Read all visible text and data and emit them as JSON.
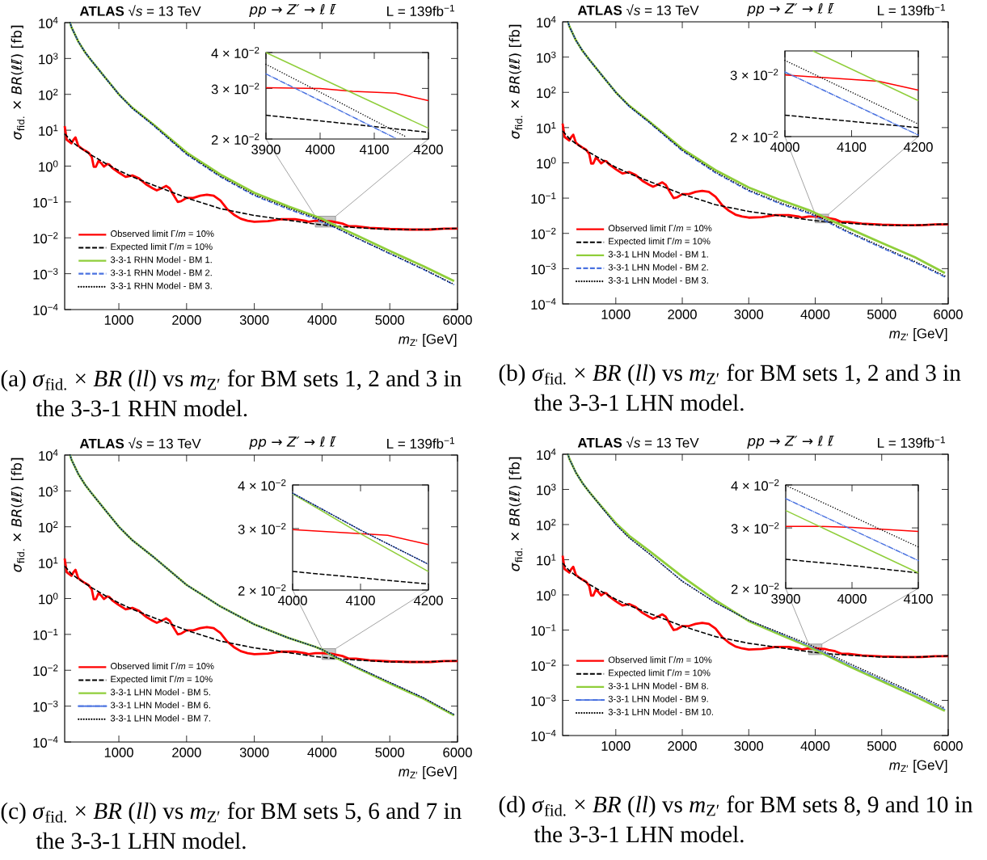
{
  "chart_data": [
    {
      "type": "line",
      "log": "y",
      "legend": "bottom left",
      "xlabel": "*m*$_{Z′}$ [GeV]",
      "ylabel": "*σ*$_{fid.}$ × *BR*(*ℓℓ̄*)  [fb]",
      "xlim": [
        200,
        6000
      ],
      "ylim": [
        0.0001,
        10000
      ],
      "xticks": [
        1000,
        2000,
        3000,
        4000,
        5000,
        6000
      ],
      "yticks": [
        {
          "value": 0.0001,
          "label": "10$^{−4}$"
        },
        {
          "value": 0.001,
          "label": "10$^{−3}$"
        },
        {
          "value": 0.01,
          "label": "10$^{−2}$"
        },
        {
          "value": 0.1,
          "label": "10$^{−1}$"
        },
        {
          "value": 1,
          "label": "10$^{0}$"
        },
        {
          "value": 10,
          "label": "10$^{1}$"
        },
        {
          "value": 100,
          "label": "10$^{2}$"
        },
        {
          "value": 1000,
          "label": "10$^{3}$"
        },
        {
          "value": 10000,
          "label": "10$^{4}$"
        }
      ],
      "annotations": [
        "**ATLAS** √*s* = 13 TeV",
        "*pp* → *Z′* → *ℓ* *ℓ̄*",
        "L = 139fb$^{−1}$",
        "(a) *σ*$_{fid.}$ × *BR* (*ll*) vs *m*$_{Z′}$ for BM sets 1, 2 and 3 in the 3-3-1 RHN model."
      ],
      "series": [
        {
          "name": "Observed limit Γ/*m* = 10%",
          "color": "#ff0000",
          "line_style": "solid",
          "x": [
            200,
            230,
            260,
            300,
            330,
            360,
            400,
            450,
            500,
            550,
            600,
            630,
            660,
            700,
            740,
            780,
            830,
            860,
            900,
            1000,
            1100,
            1200,
            1300,
            1400,
            1500,
            1560,
            1630,
            1700,
            1750,
            1800,
            1870,
            1920,
            2000,
            2100,
            2200,
            2300,
            2400,
            2500,
            2600,
            2700,
            2800,
            2900,
            3000,
            3200,
            3400,
            3600,
            3750,
            3800,
            3900,
            4000,
            4140,
            4200,
            4300,
            4400,
            4500,
            4700,
            5000,
            5300,
            5600,
            5800,
            6000
          ],
          "values": [
            13,
            5.4,
            4.9,
            4.3,
            5.4,
            6.3,
            3.7,
            3.1,
            2.7,
            2.4,
            1.8,
            0.95,
            0.95,
            1.4,
            1.2,
            0.97,
            1.14,
            1.1,
            0.9,
            0.66,
            0.5,
            0.55,
            0.45,
            0.31,
            0.24,
            0.21,
            0.24,
            0.28,
            0.24,
            0.165,
            0.1,
            0.105,
            0.13,
            0.13,
            0.15,
            0.16,
            0.15,
            0.11,
            0.063,
            0.044,
            0.034,
            0.03,
            0.028,
            0.029,
            0.033,
            0.033,
            0.03,
            0.028,
            0.03,
            0.03,
            0.0289,
            0.0272,
            0.025,
            0.021,
            0.021,
            0.019,
            0.0177,
            0.017,
            0.017,
            0.018,
            0.018
          ]
        },
        {
          "name": "Expected limit Γ/*m* = 10%",
          "color": "#000000",
          "line_style": "dashed",
          "x": [
            200,
            300,
            400,
            600,
            800,
            1000,
            1200,
            1500,
            2000,
            2500,
            3000,
            3500,
            3900,
            4000,
            4200,
            4500,
            5000,
            5500,
            6000
          ],
          "values": [
            8,
            4.9,
            3.5,
            2,
            1.2,
            0.75,
            0.5,
            0.3,
            0.13,
            0.065,
            0.042,
            0.031,
            0.0242,
            0.023,
            0.0211,
            0.0193,
            0.017,
            0.017,
            0.0185
          ]
        },
        {
          "name": "3-3-1 RHN Model - BM 1.",
          "color": "#8fce3a",
          "line_style": "solid",
          "x": [
            280,
            300,
            400,
            500,
            600,
            800,
            1000,
            1200,
            1500,
            2000,
            2500,
            3000,
            3500,
            3900,
            4000,
            4200,
            4500,
            5000,
            5500,
            5950
          ],
          "values": [
            10000,
            7500,
            3000,
            1500,
            850,
            290,
            100,
            42,
            15,
            2.4,
            0.58,
            0.18,
            0.075,
            0.04,
            0.034,
            0.0218,
            0.012,
            0.0043,
            0.0016,
            0.00062
          ]
        },
        {
          "name": "3-3-1 RHN Model - BM 2.",
          "color": "#4a72e0",
          "line_style": "dashed",
          "x": [
            280,
            300,
            400,
            500,
            600,
            800,
            1000,
            1200,
            1500,
            2000,
            2500,
            3000,
            3500,
            3900,
            4000,
            4200,
            4500,
            5000,
            5500,
            5950
          ],
          "values": [
            10000,
            7500,
            3000,
            1500,
            850,
            290,
            100,
            40,
            14,
            2.1,
            0.5,
            0.15,
            0.063,
            0.0337,
            0.0272,
            0.019,
            0.01,
            0.0036,
            0.0013,
            0.00049
          ]
        },
        {
          "name": "3-3-1 RHN Model - BM 3.",
          "color": "#000000",
          "line_style": "dotted",
          "x": [
            280,
            300,
            400,
            500,
            600,
            800,
            1000,
            1200,
            1500,
            2000,
            2500,
            3000,
            3500,
            3900,
            4000,
            4200,
            4500,
            5000,
            5500,
            5950
          ],
          "values": [
            10000,
            7500,
            3000,
            1500,
            850,
            290,
            100,
            41,
            14.5,
            2.2,
            0.52,
            0.16,
            0.068,
            0.0364,
            0.0291,
            0.0195,
            0.0102,
            0.0037,
            0.00135,
            0.0005
          ]
        }
      ]
    },
    {
      "type": "line",
      "log": "y",
      "xlim": [
        3900,
        4200
      ],
      "ylim": [
        0.02,
        0.04
      ],
      "xticks": [
        3900,
        4000,
        4100,
        4200
      ],
      "yticks": [
        {
          "value": 0.02,
          "label": "2 × 10$^{−2}$"
        },
        {
          "value": 0.03,
          "label": "3 × 10$^{−2}$"
        },
        {
          "value": 0.04,
          "label": "4 × 10$^{−2}$"
        }
      ],
      "series": [
        {
          "color": "#ff0000",
          "line_style": "solid",
          "x": [
            3900,
            4000,
            4060,
            4140,
            4200
          ],
          "values": [
            0.0302,
            0.03,
            0.0293,
            0.0289,
            0.0272
          ]
        },
        {
          "color": "#000000",
          "line_style": "dashed",
          "x": [
            3900,
            4050,
            4200
          ],
          "values": [
            0.0242,
            0.0226,
            0.0211
          ]
        },
        {
          "color": "#8fce3a",
          "line_style": "solid",
          "x": [
            3900,
            4050,
            4200
          ],
          "values": [
            0.04,
            0.0295,
            0.0218
          ]
        },
        {
          "color": "#4a72e0",
          "line_style": "dashdot",
          "x": [
            3900,
            4000,
            4100,
            4140
          ],
          "values": [
            0.0337,
            0.0272,
            0.0219,
            0.0201
          ]
        },
        {
          "color": "#000000",
          "line_style": "dotted",
          "x": [
            3900,
            4000,
            4100,
            4160
          ],
          "values": [
            0.0364,
            0.0291,
            0.0232,
            0.0203
          ]
        }
      ]
    },
    {
      "type": "line",
      "log": "y",
      "legend": "bottom left",
      "xlabel": "*m*$_{Z′}$ [GeV]",
      "ylabel": "*σ*$_{fid.}$ × *BR*(*ℓℓ̄*)  [fb]",
      "xlim": [
        200,
        6000
      ],
      "ylim": [
        0.0001,
        10000
      ],
      "xticks": [
        1000,
        2000,
        3000,
        4000,
        5000,
        6000
      ],
      "yticks": [
        {
          "value": 0.0001,
          "label": "10$^{−4}$"
        },
        {
          "value": 0.001,
          "label": "10$^{−3}$"
        },
        {
          "value": 0.01,
          "label": "10$^{−2}$"
        },
        {
          "value": 0.1,
          "label": "10$^{−1}$"
        },
        {
          "value": 1,
          "label": "10$^{0}$"
        },
        {
          "value": 10,
          "label": "10$^{1}$"
        },
        {
          "value": 100,
          "label": "10$^{2}$"
        },
        {
          "value": 1000,
          "label": "10$^{3}$"
        },
        {
          "value": 10000,
          "label": "10$^{4}$"
        }
      ],
      "annotations": [
        "**ATLAS** √*s* = 13 TeV",
        "*pp* → *Z′* → *ℓ* *ℓ̄*",
        "L = 139fb$^{−1}$",
        "(b) *σ*$_{fid.}$ × *BR* (*ll*) vs *m*$_{Z′}$ for BM sets 1, 2 and 3 in the 3-3-1 LHN model."
      ],
      "series": [
        {
          "name": "Observed limit Γ/*m* = 10%",
          "color": "#ff0000",
          "line_style": "solid",
          "x": [
            200,
            230,
            260,
            300,
            330,
            360,
            400,
            450,
            500,
            550,
            600,
            630,
            660,
            700,
            740,
            780,
            830,
            860,
            900,
            1000,
            1100,
            1200,
            1300,
            1400,
            1500,
            1560,
            1630,
            1700,
            1750,
            1800,
            1870,
            1920,
            2000,
            2100,
            2200,
            2300,
            2400,
            2500,
            2600,
            2700,
            2800,
            2900,
            3000,
            3200,
            3400,
            3600,
            3750,
            3800,
            3900,
            4000,
            4140,
            4200,
            4300,
            4400,
            4500,
            4700,
            5000,
            5300,
            5600,
            5800,
            6000
          ],
          "values": [
            13,
            5.4,
            4.9,
            4.3,
            5.4,
            6.3,
            3.7,
            3.1,
            2.7,
            2.4,
            1.8,
            0.95,
            0.95,
            1.4,
            1.2,
            0.97,
            1.14,
            1.1,
            0.9,
            0.66,
            0.5,
            0.55,
            0.45,
            0.31,
            0.24,
            0.21,
            0.24,
            0.28,
            0.24,
            0.165,
            0.1,
            0.105,
            0.13,
            0.13,
            0.15,
            0.16,
            0.15,
            0.11,
            0.063,
            0.044,
            0.034,
            0.03,
            0.028,
            0.029,
            0.033,
            0.033,
            0.03,
            0.028,
            0.03,
            0.03,
            0.0289,
            0.0272,
            0.025,
            0.021,
            0.021,
            0.019,
            0.0177,
            0.017,
            0.017,
            0.018,
            0.018
          ]
        },
        {
          "name": "Expected limit Γ/*m* = 10%",
          "color": "#000000",
          "line_style": "dashed",
          "x": [
            200,
            300,
            400,
            600,
            800,
            1000,
            1200,
            1500,
            2000,
            2500,
            3000,
            3500,
            3900,
            4000,
            4200,
            4500,
            5000,
            5500,
            6000
          ],
          "values": [
            8,
            4.9,
            3.5,
            2,
            1.2,
            0.75,
            0.5,
            0.3,
            0.13,
            0.065,
            0.042,
            0.031,
            0.0242,
            0.023,
            0.0211,
            0.0193,
            0.017,
            0.017,
            0.0185
          ]
        },
        {
          "name": "3-3-1 LHN Model - BM 1.",
          "color": "#8fce3a",
          "line_style": "solid",
          "x": [
            280,
            300,
            400,
            500,
            600,
            800,
            1000,
            1200,
            1500,
            2000,
            2500,
            3000,
            3500,
            3900,
            4000,
            4200,
            4500,
            5000,
            5500,
            5950
          ],
          "values": [
            10000,
            7500,
            3000,
            1500,
            850,
            290,
            100,
            42,
            15,
            2.5,
            0.62,
            0.2,
            0.085,
            0.046,
            0.038,
            0.0253,
            0.014,
            0.0054,
            0.0021,
            0.00075
          ]
        },
        {
          "name": "3-3-1 LHN Model - BM 2.",
          "color": "#4a72e0",
          "line_style": "dashed",
          "x": [
            280,
            300,
            400,
            500,
            600,
            800,
            1000,
            1200,
            1500,
            2000,
            2500,
            3000,
            3500,
            3900,
            4000,
            4200,
            4500,
            5000,
            5500,
            5950
          ],
          "values": [
            10000,
            7500,
            3000,
            1500,
            850,
            290,
            100,
            40,
            14,
            2.2,
            0.52,
            0.16,
            0.066,
            0.037,
            0.0305,
            0.0202,
            0.0105,
            0.0039,
            0.0015,
            0.00058
          ]
        },
        {
          "name": "3-3-1 LHN Model - BM 3.",
          "color": "#000000",
          "line_style": "dotted",
          "x": [
            280,
            300,
            400,
            500,
            600,
            800,
            1000,
            1200,
            1500,
            2000,
            2500,
            3000,
            3500,
            3900,
            4000,
            4200,
            4500,
            5000,
            5500,
            5950
          ],
          "values": [
            10000,
            7500,
            3000,
            1500,
            850,
            290,
            100,
            41,
            14.5,
            2.3,
            0.55,
            0.17,
            0.071,
            0.04,
            0.0329,
            0.0217,
            0.0112,
            0.0042,
            0.0016,
            0.00062
          ]
        }
      ]
    },
    {
      "type": "line",
      "log": "y",
      "xlim": [
        4000,
        4200
      ],
      "ylim": [
        0.02,
        0.035
      ],
      "xticks": [
        4000,
        4100,
        4200
      ],
      "yticks": [
        {
          "value": 0.02,
          "label": "2 × 10$^{−2}$"
        },
        {
          "value": 0.03,
          "label": "3 × 10$^{−2}$"
        }
      ],
      "series": [
        {
          "color": "#ff0000",
          "line_style": "solid",
          "x": [
            4000,
            4140,
            4200
          ],
          "values": [
            0.0299,
            0.0287,
            0.0271
          ]
        },
        {
          "color": "#000000",
          "line_style": "dashed",
          "x": [
            4000,
            4200
          ],
          "values": [
            0.023,
            0.0212
          ]
        },
        {
          "color": "#8fce3a",
          "line_style": "solid",
          "x": [
            4042,
            4200
          ],
          "values": [
            0.035,
            0.0253
          ]
        },
        {
          "color": "#4a72e0",
          "line_style": "dashdot",
          "x": [
            4000,
            4200
          ],
          "values": [
            0.0305,
            0.0202
          ]
        },
        {
          "color": "#000000",
          "line_style": "dotted",
          "x": [
            4000,
            4200
          ],
          "values": [
            0.0329,
            0.0217
          ]
        }
      ]
    },
    {
      "type": "line",
      "log": "y",
      "legend": "bottom left",
      "xlabel": "*m*$_{Z′}$ [GeV]",
      "ylabel": "*σ*$_{fid.}$ × *BR*(*ℓℓ̄*)  [fb]",
      "xlim": [
        200,
        6000
      ],
      "ylim": [
        0.0001,
        10000
      ],
      "xticks": [
        1000,
        2000,
        3000,
        4000,
        5000,
        6000
      ],
      "yticks": [
        {
          "value": 0.0001,
          "label": "10$^{−4}$"
        },
        {
          "value": 0.001,
          "label": "10$^{−3}$"
        },
        {
          "value": 0.01,
          "label": "10$^{−2}$"
        },
        {
          "value": 0.1,
          "label": "10$^{−1}$"
        },
        {
          "value": 1,
          "label": "10$^{0}$"
        },
        {
          "value": 10,
          "label": "10$^{1}$"
        },
        {
          "value": 100,
          "label": "10$^{2}$"
        },
        {
          "value": 1000,
          "label": "10$^{3}$"
        },
        {
          "value": 10000,
          "label": "10$^{4}$"
        }
      ],
      "annotations": [
        "**ATLAS** √*s* = 13 TeV",
        "*pp* → *Z′* → *ℓ* *ℓ̄*",
        "L = 139fb$^{−1}$",
        "(c) *σ*$_{fid.}$ × *BR* (*ll*) vs *m*$_{Z′}$ for BM sets 5, 6 and 7 in the 3-3-1 LHN model."
      ],
      "series": [
        {
          "name": "Observed limit Γ/*m* = 10%",
          "color": "#ff0000",
          "line_style": "solid",
          "x": [
            200,
            230,
            260,
            300,
            330,
            360,
            400,
            450,
            500,
            550,
            600,
            630,
            660,
            700,
            740,
            780,
            830,
            860,
            900,
            1000,
            1100,
            1200,
            1300,
            1400,
            1500,
            1560,
            1630,
            1700,
            1750,
            1800,
            1870,
            1920,
            2000,
            2100,
            2200,
            2300,
            2400,
            2500,
            2600,
            2700,
            2800,
            2900,
            3000,
            3200,
            3400,
            3600,
            3750,
            3800,
            3900,
            4000,
            4140,
            4200,
            4300,
            4400,
            4500,
            4700,
            5000,
            5300,
            5600,
            5800,
            6000
          ],
          "values": [
            13,
            5.4,
            4.9,
            4.3,
            5.4,
            6.3,
            3.7,
            3.1,
            2.7,
            2.4,
            1.8,
            0.95,
            0.95,
            1.4,
            1.2,
            0.97,
            1.14,
            1.1,
            0.9,
            0.66,
            0.5,
            0.55,
            0.45,
            0.31,
            0.24,
            0.21,
            0.24,
            0.28,
            0.24,
            0.165,
            0.1,
            0.105,
            0.13,
            0.13,
            0.15,
            0.16,
            0.15,
            0.11,
            0.063,
            0.044,
            0.034,
            0.03,
            0.028,
            0.029,
            0.033,
            0.033,
            0.03,
            0.028,
            0.03,
            0.03,
            0.0289,
            0.0272,
            0.025,
            0.021,
            0.021,
            0.019,
            0.0177,
            0.017,
            0.017,
            0.018,
            0.018
          ]
        },
        {
          "name": "Expected limit Γ/*m* = 10%",
          "color": "#000000",
          "line_style": "dashed",
          "x": [
            200,
            300,
            400,
            600,
            800,
            1000,
            1200,
            1500,
            2000,
            2500,
            3000,
            3500,
            3900,
            4000,
            4200,
            4500,
            5000,
            5500,
            6000
          ],
          "values": [
            8,
            4.9,
            3.5,
            2,
            1.2,
            0.75,
            0.5,
            0.3,
            0.13,
            0.065,
            0.042,
            0.031,
            0.0242,
            0.023,
            0.0211,
            0.0193,
            0.017,
            0.017,
            0.0185
          ]
        },
        {
          "name": "3-3-1 LHN Model - BM 5.",
          "color": "#8fce3a",
          "line_style": "solid",
          "x": [
            280,
            300,
            400,
            500,
            600,
            800,
            1000,
            1200,
            1500,
            2000,
            2500,
            3000,
            3500,
            3900,
            4000,
            4200,
            4500,
            5000,
            5500,
            5950
          ],
          "values": [
            10000,
            7500,
            3000,
            1500,
            850,
            290,
            100,
            42,
            15,
            2.4,
            0.6,
            0.19,
            0.08,
            0.045,
            0.0377,
            0.0226,
            0.012,
            0.0043,
            0.0016,
            0.00055
          ]
        },
        {
          "name": "3-3-1 LHN Model - BM 6.",
          "color": "#4a72e0",
          "line_style": "dashdot",
          "x": [
            280,
            300,
            400,
            500,
            600,
            800,
            1000,
            1200,
            1500,
            2000,
            2500,
            3000,
            3500,
            3900,
            4000,
            4200,
            4500,
            5000,
            5500,
            5950
          ],
          "values": [
            10000,
            7500,
            3000,
            1500,
            850,
            290,
            100,
            42,
            15,
            2.4,
            0.6,
            0.19,
            0.08,
            0.045,
            0.0379,
            0.0237,
            0.0125,
            0.0046,
            0.0017,
            0.00058
          ]
        },
        {
          "name": "3-3-1 LHN Model - BM 7.",
          "color": "#000000",
          "line_style": "dotted",
          "x": [
            280,
            300,
            400,
            500,
            600,
            800,
            1000,
            1200,
            1500,
            2000,
            2500,
            3000,
            3500,
            3900,
            4000,
            4200,
            4500,
            5000,
            5500,
            5950
          ],
          "values": [
            10000,
            7500,
            3000,
            1500,
            850,
            290,
            100,
            42,
            15,
            2.4,
            0.6,
            0.19,
            0.08,
            0.045,
            0.0379,
            0.0237,
            0.0125,
            0.0046,
            0.0017,
            0.00058
          ]
        }
      ]
    },
    {
      "type": "line",
      "log": "y",
      "xlim": [
        4000,
        4200
      ],
      "ylim": [
        0.02,
        0.04
      ],
      "xticks": [
        4000,
        4100,
        4200
      ],
      "yticks": [
        {
          "value": 0.02,
          "label": "2 × 10$^{−2}$"
        },
        {
          "value": 0.03,
          "label": "3 × 10$^{−2}$"
        },
        {
          "value": 0.04,
          "label": "4 × 10$^{−2}$"
        }
      ],
      "series": [
        {
          "color": "#ff0000",
          "line_style": "solid",
          "x": [
            4000,
            4140,
            4200
          ],
          "values": [
            0.0298,
            0.0287,
            0.027
          ]
        },
        {
          "color": "#000000",
          "line_style": "dashed",
          "x": [
            4000,
            4200
          ],
          "values": [
            0.0226,
            0.0208
          ]
        },
        {
          "color": "#8fce3a",
          "line_style": "solid",
          "x": [
            4000,
            4040,
            4100,
            4200
          ],
          "values": [
            0.0377,
            0.034,
            0.029,
            0.0226
          ]
        },
        {
          "color": "#4a72e0",
          "line_style": "dashdot",
          "x": [
            4000,
            4100,
            4200
          ],
          "values": [
            0.0379,
            0.0297,
            0.0237
          ]
        },
        {
          "color": "#000000",
          "line_style": "dotted",
          "x": [
            4000,
            4100,
            4200
          ],
          "values": [
            0.0379,
            0.0297,
            0.0237
          ]
        }
      ]
    },
    {
      "type": "line",
      "log": "y",
      "legend": "bottom left",
      "xlabel": "*m*$_{Z′}$ [GeV]",
      "ylabel": "*σ*$_{fid.}$ × *BR*(*ℓℓ̄*)  [fb]",
      "xlim": [
        200,
        6000
      ],
      "ylim": [
        0.0001,
        10000
      ],
      "xticks": [
        1000,
        2000,
        3000,
        4000,
        5000,
        6000
      ],
      "yticks": [
        {
          "value": 0.0001,
          "label": "10$^{−4}$"
        },
        {
          "value": 0.001,
          "label": "10$^{−3}$"
        },
        {
          "value": 0.01,
          "label": "10$^{−2}$"
        },
        {
          "value": 0.1,
          "label": "10$^{−1}$"
        },
        {
          "value": 1,
          "label": "10$^{0}$"
        },
        {
          "value": 10,
          "label": "10$^{1}$"
        },
        {
          "value": 100,
          "label": "10$^{2}$"
        },
        {
          "value": 1000,
          "label": "10$^{3}$"
        },
        {
          "value": 10000,
          "label": "10$^{4}$"
        }
      ],
      "annotations": [
        "**ATLAS** √*s* = 13 TeV",
        "*pp* → *Z′* → *ℓ* *ℓ̄*",
        "L = 139fb$^{−1}$",
        "(d) *σ*$_{fid.}$ × *BR* (*ll*) vs *m*$_{Z′}$ for BM sets 8, 9 and 10 in the 3-3-1 LHN model."
      ],
      "series": [
        {
          "name": "Observed limit Γ/*m* = 10%",
          "color": "#ff0000",
          "line_style": "solid",
          "x": [
            200,
            230,
            260,
            300,
            330,
            360,
            400,
            450,
            500,
            550,
            600,
            630,
            660,
            700,
            740,
            780,
            830,
            860,
            900,
            1000,
            1100,
            1200,
            1300,
            1400,
            1500,
            1560,
            1630,
            1700,
            1750,
            1800,
            1870,
            1920,
            2000,
            2100,
            2200,
            2300,
            2400,
            2500,
            2600,
            2700,
            2800,
            2900,
            3000,
            3200,
            3400,
            3600,
            3750,
            3800,
            3900,
            4000,
            4140,
            4200,
            4300,
            4400,
            4500,
            4700,
            5000,
            5300,
            5600,
            5800,
            6000
          ],
          "values": [
            13,
            5.4,
            4.9,
            4.3,
            5.4,
            6.3,
            3.7,
            3.1,
            2.7,
            2.4,
            1.8,
            0.95,
            0.95,
            1.4,
            1.2,
            0.97,
            1.14,
            1.1,
            0.9,
            0.66,
            0.5,
            0.55,
            0.45,
            0.31,
            0.24,
            0.21,
            0.24,
            0.28,
            0.24,
            0.165,
            0.1,
            0.105,
            0.13,
            0.13,
            0.15,
            0.16,
            0.15,
            0.11,
            0.063,
            0.044,
            0.034,
            0.03,
            0.028,
            0.029,
            0.033,
            0.033,
            0.03,
            0.028,
            0.03,
            0.03,
            0.0289,
            0.0272,
            0.025,
            0.021,
            0.021,
            0.019,
            0.0177,
            0.017,
            0.017,
            0.018,
            0.018
          ]
        },
        {
          "name": "Expected limit Γ/*m* = 10%",
          "color": "#000000",
          "line_style": "dashed",
          "x": [
            200,
            300,
            400,
            600,
            800,
            1000,
            1200,
            1500,
            2000,
            2500,
            3000,
            3500,
            3900,
            4000,
            4200,
            4500,
            5000,
            5500,
            6000
          ],
          "values": [
            8,
            4.9,
            3.5,
            2,
            1.2,
            0.75,
            0.5,
            0.3,
            0.13,
            0.065,
            0.042,
            0.031,
            0.0242,
            0.023,
            0.0211,
            0.0193,
            0.017,
            0.017,
            0.0185
          ]
        },
        {
          "name": "3-3-1 LHN Model - BM 8.",
          "color": "#8fce3a",
          "line_style": "solid",
          "x": [
            280,
            300,
            400,
            500,
            600,
            800,
            1000,
            1200,
            1500,
            2000,
            2500,
            3000,
            3500,
            3900,
            4000,
            4200,
            4500,
            5000,
            5500,
            5950
          ],
          "values": [
            10000,
            7500,
            3000,
            1500,
            850,
            300,
            110,
            48,
            18,
            3.3,
            0.7,
            0.18,
            0.07,
            0.0337,
            0.0273,
            0.018,
            0.0095,
            0.0035,
            0.0013,
            0.0005
          ]
        },
        {
          "name": "3-3-1 LHN Model - BM 9.",
          "color": "#4a72e0",
          "line_style": "dashdot",
          "x": [
            280,
            300,
            400,
            500,
            600,
            800,
            1000,
            1200,
            1500,
            2000,
            2500,
            3000,
            3500,
            3900,
            4000,
            4200,
            4500,
            5000,
            5500,
            5950
          ],
          "values": [
            10000,
            7500,
            3000,
            1500,
            850,
            290,
            100,
            42,
            15,
            2.5,
            0.6,
            0.19,
            0.076,
            0.0365,
            0.0297,
            0.0196,
            0.0105,
            0.0039,
            0.0015,
            0.00055
          ]
        },
        {
          "name": "3-3-1 LHN Model - BM 10.",
          "color": "#000000",
          "line_style": "dotted",
          "x": [
            280,
            300,
            400,
            500,
            600,
            800,
            1000,
            1200,
            1500,
            2000,
            2500,
            3000,
            3500,
            3900,
            4000,
            4200,
            4500,
            5000,
            5500,
            5950
          ],
          "values": [
            10000,
            7500,
            3000,
            1500,
            850,
            290,
            100,
            42,
            15,
            2.4,
            0.6,
            0.19,
            0.08,
            0.0399,
            0.0325,
            0.0215,
            0.0115,
            0.0043,
            0.0016,
            0.0006
          ]
        }
      ]
    },
    {
      "type": "line",
      "log": "y",
      "xlim": [
        3900,
        4100
      ],
      "ylim": [
        0.02,
        0.04
      ],
      "xticks": [
        3900,
        4000,
        4100
      ],
      "yticks": [
        {
          "value": 0.02,
          "label": "2 × 10$^{−2}$"
        },
        {
          "value": 0.03,
          "label": "3 × 10$^{−2}$"
        },
        {
          "value": 0.04,
          "label": "4 × 10$^{−2}$"
        }
      ],
      "series": [
        {
          "color": "#ff0000",
          "line_style": "solid",
          "x": [
            3900,
            3950,
            4000,
            4100
          ],
          "values": [
            0.0303,
            0.0303,
            0.0301,
            0.0293
          ]
        },
        {
          "color": "#000000",
          "line_style": "dashed",
          "x": [
            3900,
            4000,
            4100
          ],
          "values": [
            0.0243,
            0.0233,
            0.0222
          ]
        },
        {
          "color": "#8fce3a",
          "line_style": "solid",
          "x": [
            3900,
            4100
          ],
          "values": [
            0.0337,
            0.0222
          ]
        },
        {
          "color": "#4a72e0",
          "line_style": "dashdot",
          "x": [
            3900,
            4100
          ],
          "values": [
            0.0365,
            0.0241
          ]
        },
        {
          "color": "#000000",
          "line_style": "dotted",
          "x": [
            3900,
            4100
          ],
          "values": [
            0.0399,
            0.0264
          ]
        }
      ]
    }
  ]
}
